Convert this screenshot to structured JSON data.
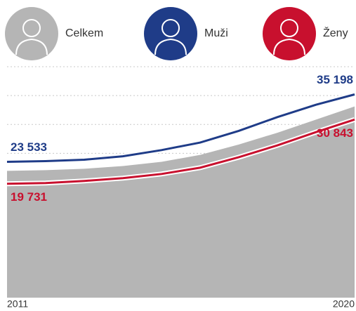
{
  "chart_data": {
    "type": "area_line",
    "x": [
      2011,
      2012,
      2013,
      2014,
      2015,
      2016,
      2017,
      2018,
      2019,
      2020
    ],
    "xlim": [
      2011,
      2020
    ],
    "xticks": [
      2011,
      2020
    ],
    "ylim": [
      0,
      40000
    ],
    "yticks": [
      0,
      5000,
      10000,
      15000,
      20000,
      25000,
      30000,
      35000,
      40000
    ],
    "grid": true,
    "series": [
      {
        "name": "Celkem",
        "color": "#b5b5b5",
        "style": "area",
        "values": [
          21960,
          22080,
          22320,
          22800,
          23520,
          24720,
          26520,
          28560,
          30840,
          33120
        ]
      },
      {
        "name": "Muži",
        "color": "#1f3c88",
        "style": "line",
        "values": [
          23533,
          23652,
          23890,
          24485,
          25556,
          26865,
          28888,
          31268,
          33410,
          35198
        ],
        "value_labels": [
          "23 533",
          null,
          null,
          null,
          null,
          null,
          null,
          null,
          null,
          "35 198"
        ]
      },
      {
        "name": "Ženy",
        "color": "#c8102e",
        "style": "line",
        "values": [
          19731,
          19852,
          20214,
          20697,
          21422,
          22509,
          24321,
          26375,
          28670,
          30843
        ],
        "value_labels": [
          "19 731",
          null,
          null,
          null,
          null,
          null,
          null,
          null,
          null,
          "30 843"
        ]
      }
    ]
  }
}
